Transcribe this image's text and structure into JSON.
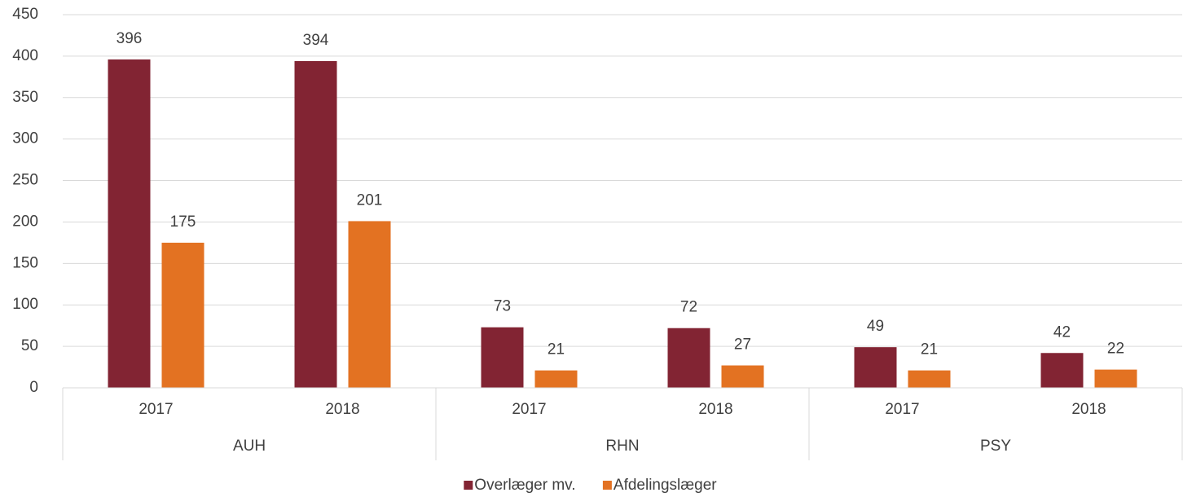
{
  "chart_data": {
    "type": "bar",
    "groups": [
      {
        "label": "AUH",
        "categories": [
          "2017",
          "2018"
        ]
      },
      {
        "label": "RHN",
        "categories": [
          "2017",
          "2018"
        ]
      },
      {
        "label": "PSY",
        "categories": [
          "2017",
          "2018"
        ]
      }
    ],
    "series": [
      {
        "name": "Overlæger mv.",
        "color": "#822433",
        "values": [
          396,
          394,
          73,
          72,
          49,
          42
        ]
      },
      {
        "name": "Afdelingslæger",
        "color": "#e37222",
        "values": [
          175,
          201,
          21,
          27,
          21,
          22
        ]
      }
    ],
    "ylim": [
      0,
      450
    ],
    "yticks": [
      0,
      50,
      100,
      150,
      200,
      250,
      300,
      350,
      400,
      450
    ],
    "grid": true,
    "legend": "bottom"
  }
}
